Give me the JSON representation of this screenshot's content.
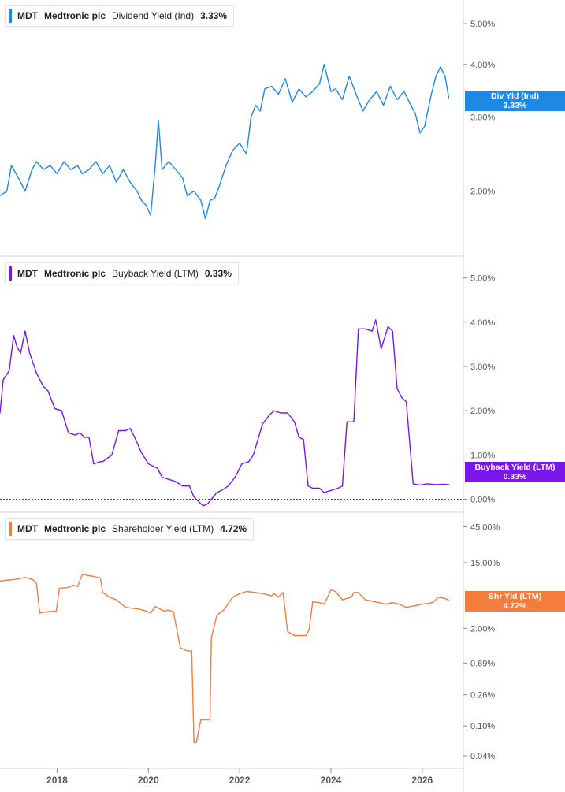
{
  "colors": {
    "div": "#1e88e5",
    "buyback": "#7b16e8",
    "shareholder": "#f47c3c",
    "grid": "#d4d4d4",
    "axis": "#888888"
  },
  "x_axis": {
    "ticks": [
      "2018",
      "2020",
      "2022",
      "2024",
      "2026"
    ],
    "ticks_value": [
      2018,
      2020,
      2022,
      2024,
      2026
    ],
    "range": [
      2016.75,
      2026.9
    ]
  },
  "legends": [
    {
      "ticker": "MDT",
      "company": "Medtronic plc",
      "metric": "Dividend Yield (Ind)",
      "value": "3.33%"
    },
    {
      "ticker": "MDT",
      "company": "Medtronic plc",
      "metric": "Buyback Yield (LTM)",
      "value": "0.33%"
    },
    {
      "ticker": "MDT",
      "company": "Medtronic plc",
      "metric": "Shareholder Yield (LTM)",
      "value": "4.72%"
    }
  ],
  "tags": [
    {
      "label": "Div Yld (Ind)",
      "value": "3.33%"
    },
    {
      "label": "Buyback Yield (LTM)",
      "value": "0.33%"
    },
    {
      "label": "Shr Yld (LTM)",
      "value": "4.72%"
    }
  ],
  "chart_data": [
    {
      "type": "line",
      "name": "Dividend Yield (Ind)",
      "scale": "log",
      "ylim": [
        1.45,
        5.5
      ],
      "yticks": [
        2,
        3,
        4,
        5
      ],
      "ytick_labels": [
        "2.00%",
        "3.00%",
        "4.00%",
        "5.00%"
      ],
      "last_value": 3.33,
      "x": [
        2016.75,
        2016.9,
        2017.0,
        2017.15,
        2017.3,
        2017.45,
        2017.55,
        2017.7,
        2017.85,
        2018.0,
        2018.15,
        2018.3,
        2018.45,
        2018.55,
        2018.7,
        2018.85,
        2019.0,
        2019.15,
        2019.3,
        2019.45,
        2019.6,
        2019.75,
        2019.85,
        2019.95,
        2020.05,
        2020.15,
        2020.22,
        2020.3,
        2020.45,
        2020.6,
        2020.75,
        2020.85,
        2021.0,
        2021.15,
        2021.25,
        2021.35,
        2021.45,
        2021.55,
        2021.7,
        2021.85,
        2022.0,
        2022.15,
        2022.25,
        2022.35,
        2022.45,
        2022.55,
        2022.7,
        2022.85,
        2023.0,
        2023.15,
        2023.3,
        2023.45,
        2023.6,
        2023.75,
        2023.85,
        2024.0,
        2024.1,
        2024.25,
        2024.4,
        2024.55,
        2024.7,
        2024.85,
        2025.0,
        2025.15,
        2025.3,
        2025.45,
        2025.6,
        2025.75,
        2025.85,
        2025.95,
        2026.05,
        2026.2,
        2026.3,
        2026.4,
        2026.5,
        2026.58
      ],
      "y": [
        1.95,
        2.0,
        2.3,
        2.15,
        2.0,
        2.25,
        2.35,
        2.25,
        2.3,
        2.2,
        2.35,
        2.25,
        2.3,
        2.2,
        2.25,
        2.35,
        2.2,
        2.3,
        2.1,
        2.25,
        2.1,
        2.0,
        1.9,
        1.85,
        1.75,
        2.3,
        2.95,
        2.25,
        2.35,
        2.25,
        2.15,
        1.95,
        2.0,
        1.9,
        1.72,
        1.9,
        1.92,
        2.05,
        2.3,
        2.5,
        2.6,
        2.45,
        3.0,
        3.2,
        3.1,
        3.5,
        3.55,
        3.4,
        3.7,
        3.25,
        3.5,
        3.35,
        3.45,
        3.6,
        4.0,
        3.45,
        3.5,
        3.3,
        3.75,
        3.4,
        3.1,
        3.3,
        3.45,
        3.2,
        3.55,
        3.3,
        3.45,
        3.2,
        3.05,
        2.75,
        2.85,
        3.4,
        3.75,
        3.95,
        3.75,
        3.33
      ]
    },
    {
      "type": "line",
      "name": "Buyback Yield (LTM)",
      "scale": "linear",
      "ylim": [
        -0.15,
        5.35
      ],
      "yticks": [
        0,
        1,
        2,
        3,
        4,
        5
      ],
      "ytick_labels": [
        "0.00%",
        "1.00%",
        "2.00%",
        "3.00%",
        "4.00%",
        "5.00%"
      ],
      "last_value": 0.33,
      "x": [
        2016.75,
        2016.82,
        2016.95,
        2017.05,
        2017.12,
        2017.2,
        2017.3,
        2017.4,
        2017.55,
        2017.7,
        2017.8,
        2017.95,
        2018.1,
        2018.25,
        2018.4,
        2018.5,
        2018.6,
        2018.7,
        2018.8,
        2018.95,
        2019.0,
        2019.2,
        2019.35,
        2019.5,
        2019.6,
        2019.7,
        2019.85,
        2020.0,
        2020.1,
        2020.2,
        2020.3,
        2020.45,
        2020.6,
        2020.75,
        2020.9,
        2021.0,
        2021.2,
        2021.3,
        2021.5,
        2021.6,
        2021.75,
        2021.9,
        2022.05,
        2022.2,
        2022.3,
        2022.5,
        2022.65,
        2022.75,
        2022.9,
        2023.05,
        2023.2,
        2023.3,
        2023.4,
        2023.5,
        2023.6,
        2023.75,
        2023.85,
        2024.0,
        2024.15,
        2024.25,
        2024.35,
        2024.5,
        2024.6,
        2024.75,
        2024.9,
        2024.98,
        2025.1,
        2025.25,
        2025.35,
        2025.45,
        2025.55,
        2025.65,
        2025.8,
        2025.95,
        2026.1,
        2026.3,
        2026.45,
        2026.58
      ],
      "y": [
        1.95,
        2.7,
        2.9,
        3.7,
        3.45,
        3.3,
        3.8,
        3.3,
        2.85,
        2.55,
        2.45,
        2.05,
        2.0,
        1.5,
        1.45,
        1.5,
        1.4,
        1.4,
        0.8,
        0.85,
        0.85,
        1.0,
        1.55,
        1.55,
        1.6,
        1.4,
        1.05,
        0.8,
        0.75,
        0.7,
        0.5,
        0.45,
        0.4,
        0.3,
        0.3,
        0.05,
        -0.15,
        -0.1,
        0.15,
        0.2,
        0.3,
        0.5,
        0.8,
        0.85,
        1.0,
        1.7,
        1.9,
        2.0,
        1.95,
        1.95,
        1.75,
        1.4,
        1.35,
        0.3,
        0.25,
        0.25,
        0.15,
        0.2,
        0.25,
        0.3,
        1.75,
        1.75,
        3.85,
        3.85,
        3.8,
        4.05,
        3.4,
        3.9,
        3.8,
        2.5,
        2.3,
        2.2,
        0.35,
        0.32,
        0.35,
        0.33,
        0.34,
        0.33
      ]
    },
    {
      "type": "line",
      "name": "Shareholder Yield (LTM)",
      "scale": "log",
      "ylim": [
        0.033,
        58
      ],
      "yticks": [
        0.04,
        0.1,
        0.26,
        0.69,
        2.0,
        15.0,
        45.0
      ],
      "ytick_labels": [
        "0.04%",
        "0.10%",
        "0.26%",
        "0.69%",
        "2.00%",
        "15.00%",
        "45.00%"
      ],
      "last_value": 4.72,
      "x": [
        2016.75,
        2016.95,
        2017.1,
        2017.3,
        2017.45,
        2017.55,
        2017.62,
        2017.75,
        2017.95,
        2017.98,
        2018.05,
        2018.25,
        2018.35,
        2018.45,
        2018.55,
        2018.65,
        2018.8,
        2018.95,
        2019.0,
        2019.15,
        2019.3,
        2019.5,
        2019.65,
        2019.8,
        2019.95,
        2020.05,
        2020.15,
        2020.3,
        2020.35,
        2020.45,
        2020.55,
        2020.7,
        2020.85,
        2020.95,
        2021.0,
        2021.05,
        2021.15,
        2021.25,
        2021.35,
        2021.38,
        2021.5,
        2021.65,
        2021.85,
        2022.0,
        2022.15,
        2022.35,
        2022.5,
        2022.6,
        2022.7,
        2022.75,
        2022.85,
        2022.95,
        2023.05,
        2023.2,
        2023.3,
        2023.45,
        2023.52,
        2023.6,
        2023.75,
        2023.85,
        2024.0,
        2024.1,
        2024.25,
        2024.45,
        2024.5,
        2024.6,
        2024.75,
        2024.9,
        2025.05,
        2025.2,
        2025.35,
        2025.5,
        2025.65,
        2025.85,
        2026.0,
        2026.15,
        2026.25,
        2026.35,
        2026.5,
        2026.58
      ],
      "y": [
        8.5,
        8.8,
        9.0,
        9.5,
        9.0,
        8.0,
        3.2,
        3.3,
        3.4,
        3.3,
        6.8,
        7.0,
        7.5,
        7.2,
        10.5,
        10.2,
        9.8,
        9.3,
        6.0,
        5.2,
        4.8,
        3.8,
        3.7,
        3.6,
        3.4,
        3.2,
        3.9,
        3.5,
        3.4,
        3.5,
        3.3,
        1.1,
        1.0,
        1.0,
        0.06,
        0.06,
        0.12,
        0.12,
        0.12,
        1.5,
        3.0,
        3.5,
        5.2,
        5.8,
        6.2,
        6.0,
        5.8,
        5.6,
        5.4,
        5.8,
        5.2,
        6.0,
        1.8,
        1.6,
        1.6,
        1.6,
        1.9,
        4.5,
        4.4,
        4.2,
        6.5,
        6.2,
        4.8,
        5.2,
        6.0,
        6.0,
        4.8,
        4.6,
        4.4,
        4.2,
        4.4,
        4.2,
        3.8,
        4.0,
        4.2,
        4.3,
        4.5,
        5.2,
        5.0,
        4.72
      ]
    }
  ]
}
